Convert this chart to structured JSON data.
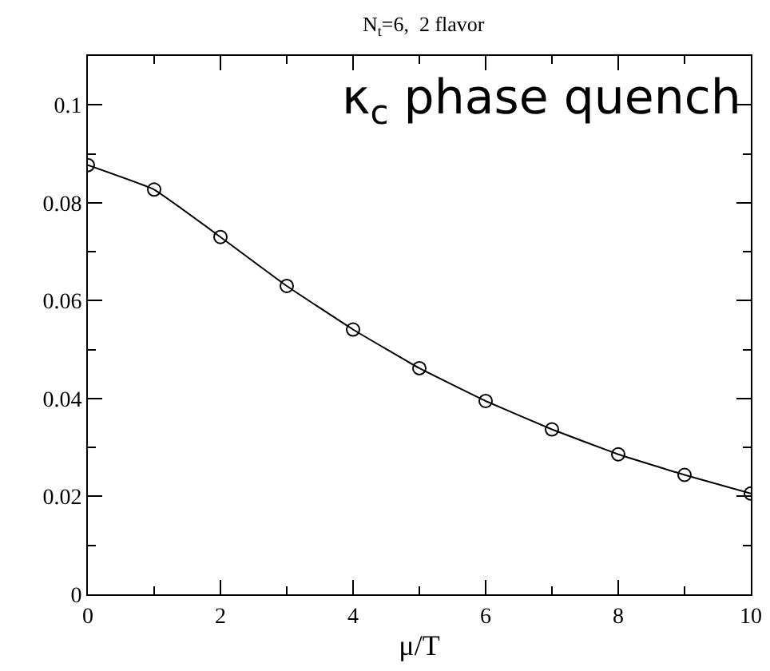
{
  "chart_data": {
    "type": "line",
    "title": "N$_{t}$=6,  2 flavor",
    "xlabel": "μ/T",
    "annotations": [
      "κ$_{c}$ phase quench"
    ],
    "x": [
      0,
      1,
      2,
      3,
      4,
      5,
      6,
      7,
      8,
      9,
      10
    ],
    "series": [
      {
        "color": "#000000",
        "values": [
          0.0877,
          0.0827,
          0.073,
          0.063,
          0.0541,
          0.0462,
          0.0395,
          0.0337,
          0.0286,
          0.0244,
          0.0206
        ]
      }
    ],
    "xlim": [
      0,
      10
    ],
    "ylim": [
      0,
      0.11
    ],
    "xticks": [
      0,
      {
        "value": 1,
        "label": null
      },
      2,
      {
        "value": 3,
        "label": null
      },
      4,
      {
        "value": 5,
        "label": null
      },
      6,
      {
        "value": 7,
        "label": null
      },
      8,
      {
        "value": 9,
        "label": null
      },
      10
    ],
    "yticks": [
      0,
      {
        "value": 0.01,
        "label": null
      },
      0.02,
      {
        "value": 0.03,
        "label": null
      },
      0.04,
      {
        "value": 0.05,
        "label": null
      },
      0.06,
      {
        "value": 0.07,
        "label": null
      },
      0.08,
      {
        "value": 0.09,
        "label": null
      },
      0.1
    ],
    "marker": "circle",
    "line_style": "solid",
    "grid": false
  }
}
